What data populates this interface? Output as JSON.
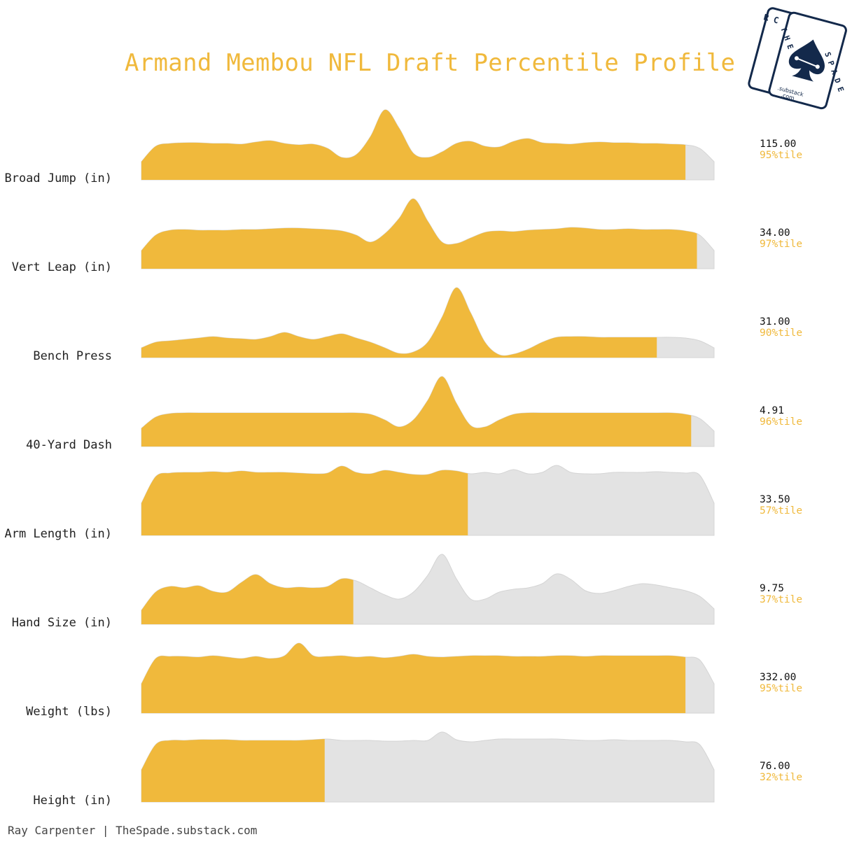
{
  "title": "Armand Membou NFL Draft Percentile Profile",
  "footer": "Ray Carpenter | TheSpade.substack.com",
  "colors": {
    "accent": "#F0B93C",
    "background_fill": "#E3E3E3",
    "navy": "#13294B"
  },
  "logo": {
    "icon": "spade-card-logo-icon",
    "back_card_text": "R C",
    "front_card_left": "T H E",
    "front_card_right": "S P A D E",
    "sub1": ".substack",
    "sub2": ".com"
  },
  "chart_data": {
    "type": "area",
    "subtype": "ridgeline-percentile",
    "title": "Armand Membou NFL Draft Percentile Profile",
    "series": [
      {
        "name": "Broad Jump (in)",
        "value": "115.00",
        "percentile_label": "95%tile",
        "percentile": 95,
        "density": [
          0.26,
          0.48,
          0.52,
          0.53,
          0.53,
          0.52,
          0.52,
          0.51,
          0.54,
          0.56,
          0.52,
          0.5,
          0.51,
          0.45,
          0.32,
          0.36,
          0.62,
          1.0,
          0.74,
          0.38,
          0.32,
          0.4,
          0.52,
          0.55,
          0.48,
          0.47,
          0.55,
          0.59,
          0.53,
          0.52,
          0.51,
          0.53,
          0.54,
          0.53,
          0.53,
          0.52,
          0.52,
          0.51,
          0.5,
          0.45,
          0.26
        ]
      },
      {
        "name": "Vert Leap (in)",
        "value": "34.00",
        "percentile_label": "97%tile",
        "percentile": 97,
        "density": [
          0.26,
          0.48,
          0.55,
          0.56,
          0.55,
          0.55,
          0.55,
          0.56,
          0.56,
          0.57,
          0.58,
          0.58,
          0.57,
          0.56,
          0.54,
          0.48,
          0.38,
          0.5,
          0.72,
          1.0,
          0.68,
          0.38,
          0.36,
          0.44,
          0.52,
          0.54,
          0.53,
          0.55,
          0.56,
          0.57,
          0.59,
          0.58,
          0.56,
          0.56,
          0.57,
          0.56,
          0.56,
          0.56,
          0.54,
          0.48,
          0.26
        ]
      },
      {
        "name": "Bench Press",
        "value": "31.00",
        "percentile_label": "90%tile",
        "percentile": 90,
        "density": [
          0.14,
          0.22,
          0.24,
          0.26,
          0.28,
          0.3,
          0.28,
          0.27,
          0.26,
          0.3,
          0.36,
          0.3,
          0.26,
          0.3,
          0.34,
          0.28,
          0.22,
          0.14,
          0.06,
          0.08,
          0.22,
          0.58,
          1.0,
          0.64,
          0.22,
          0.04,
          0.05,
          0.12,
          0.22,
          0.29,
          0.3,
          0.3,
          0.29,
          0.29,
          0.29,
          0.29,
          0.29,
          0.29,
          0.28,
          0.24,
          0.14
        ]
      },
      {
        "name": "40-Yard Dash",
        "value": "4.91",
        "percentile_label": "96%tile",
        "percentile": 96,
        "density": [
          0.26,
          0.42,
          0.47,
          0.48,
          0.48,
          0.48,
          0.48,
          0.48,
          0.48,
          0.48,
          0.48,
          0.48,
          0.48,
          0.48,
          0.48,
          0.48,
          0.46,
          0.38,
          0.28,
          0.38,
          0.66,
          1.0,
          0.62,
          0.3,
          0.28,
          0.38,
          0.46,
          0.48,
          0.48,
          0.48,
          0.48,
          0.48,
          0.48,
          0.48,
          0.48,
          0.48,
          0.48,
          0.48,
          0.46,
          0.4,
          0.22
        ]
      },
      {
        "name": "Arm Length (in)",
        "value": "33.50",
        "percentile_label": "57%tile",
        "percentile": 57,
        "density": [
          0.46,
          0.84,
          0.89,
          0.9,
          0.9,
          0.91,
          0.9,
          0.92,
          0.9,
          0.9,
          0.9,
          0.89,
          0.88,
          0.89,
          0.99,
          0.9,
          0.88,
          0.93,
          0.9,
          0.87,
          0.87,
          0.93,
          0.92,
          0.88,
          0.9,
          0.88,
          0.94,
          0.88,
          0.9,
          1.0,
          0.9,
          0.88,
          0.88,
          0.9,
          0.9,
          0.9,
          0.91,
          0.9,
          0.89,
          0.86,
          0.46
        ]
      },
      {
        "name": "Hand Size (in)",
        "value": "9.75",
        "percentile_label": "37%tile",
        "percentile": 37,
        "density": [
          0.2,
          0.46,
          0.54,
          0.52,
          0.55,
          0.47,
          0.46,
          0.6,
          0.71,
          0.58,
          0.52,
          0.53,
          0.52,
          0.54,
          0.65,
          0.62,
          0.52,
          0.42,
          0.36,
          0.46,
          0.7,
          1.0,
          0.65,
          0.36,
          0.36,
          0.46,
          0.5,
          0.52,
          0.58,
          0.72,
          0.64,
          0.48,
          0.44,
          0.48,
          0.54,
          0.58,
          0.56,
          0.52,
          0.48,
          0.4,
          0.22
        ]
      },
      {
        "name": "Weight (lbs)",
        "value": "332.00",
        "percentile_label": "95%tile",
        "percentile": 95,
        "density": [
          0.42,
          0.78,
          0.81,
          0.81,
          0.8,
          0.82,
          0.8,
          0.78,
          0.81,
          0.78,
          0.82,
          1.0,
          0.82,
          0.81,
          0.82,
          0.8,
          0.81,
          0.79,
          0.81,
          0.84,
          0.81,
          0.8,
          0.81,
          0.82,
          0.82,
          0.82,
          0.81,
          0.81,
          0.81,
          0.82,
          0.82,
          0.81,
          0.82,
          0.82,
          0.82,
          0.82,
          0.82,
          0.82,
          0.8,
          0.76,
          0.42
        ]
      },
      {
        "name": "Height (in)",
        "value": "76.00",
        "percentile_label": "32%tile",
        "percentile": 32,
        "density": [
          0.46,
          0.82,
          0.88,
          0.88,
          0.89,
          0.89,
          0.89,
          0.88,
          0.88,
          0.88,
          0.88,
          0.88,
          0.89,
          0.9,
          0.88,
          0.88,
          0.88,
          0.87,
          0.87,
          0.88,
          0.88,
          1.0,
          0.89,
          0.86,
          0.88,
          0.9,
          0.9,
          0.9,
          0.9,
          0.9,
          0.89,
          0.88,
          0.88,
          0.89,
          0.88,
          0.88,
          0.88,
          0.88,
          0.86,
          0.82,
          0.46
        ]
      }
    ],
    "grid": false,
    "legend": "none"
  }
}
